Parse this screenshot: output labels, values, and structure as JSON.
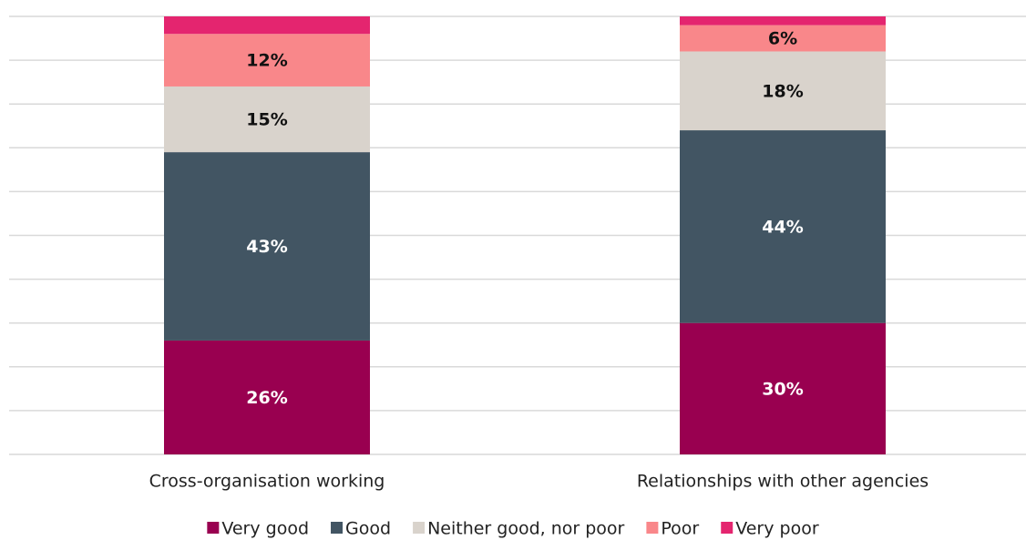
{
  "chart_data": {
    "type": "stacked_bar",
    "categories": [
      "Cross-organisation working",
      "Relationships with other agencies"
    ],
    "series": [
      {
        "name": "Very good",
        "color": "#990050",
        "values": [
          26,
          30
        ],
        "value_labels": [
          "26%",
          "30%"
        ]
      },
      {
        "name": "Good",
        "color": "#425563",
        "values": [
          43,
          44
        ],
        "value_labels": [
          "43%",
          "44%"
        ]
      },
      {
        "name": "Neither good, nor poor",
        "color": "#d9d3cc",
        "values": [
          15,
          18
        ],
        "value_labels": [
          "15%",
          "18%"
        ]
      },
      {
        "name": "Poor",
        "color": "#f9878a",
        "values": [
          12,
          6
        ],
        "value_labels": [
          "12%",
          "6%"
        ]
      },
      {
        "name": "Very poor",
        "color": "#e4256f",
        "values": [
          4,
          2
        ],
        "value_labels": [
          null,
          null
        ]
      }
    ],
    "ylim": [
      0,
      100
    ],
    "yticks": [
      0,
      10,
      20,
      30,
      40,
      50,
      60,
      70,
      80,
      90,
      100
    ],
    "grid": true,
    "legend": "bottom"
  }
}
